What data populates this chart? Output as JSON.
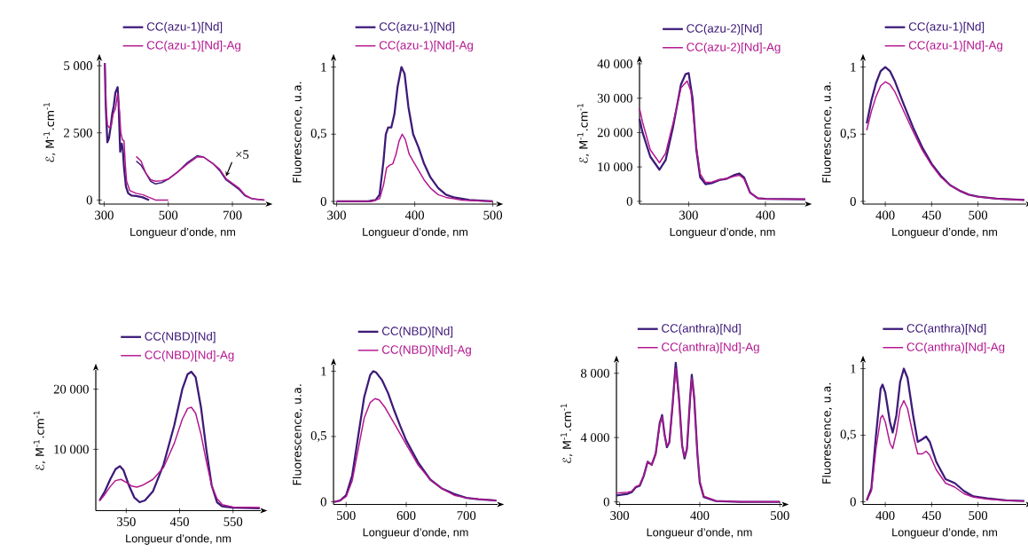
{
  "chart_data": [
    {
      "type": "line",
      "xlabel": "Longueur d’onde, nm",
      "ylabel": "ℰ, M$^{-1}$.cm$^{-1}$",
      "legend": "top",
      "xlim": [
        285,
        805
      ],
      "ylim": [
        -150,
        5200
      ],
      "xticks": [
        300,
        500,
        700
      ],
      "yticks": [
        0,
        {
          "value": 2500,
          "label": "2 500"
        },
        {
          "value": 5000,
          "label": "5 000"
        }
      ],
      "annotations": [
        {
          "text": "×5",
          "x": 680,
          "y": 880
        }
      ],
      "series": [
        {
          "name": "CC(azu-1)[Nd]",
          "color": "#3d1a78",
          "x": [
            302,
            305,
            310,
            315,
            320,
            325,
            330,
            335,
            342,
            345,
            350,
            355,
            358,
            362,
            368,
            375,
            385,
            400,
            420,
            440
          ],
          "values": [
            5100,
            3500,
            2150,
            2300,
            2700,
            3200,
            3500,
            4000,
            4200,
            3600,
            1800,
            2100,
            1900,
            1200,
            500,
            250,
            170,
            150,
            100,
            0
          ]
        },
        {
          "name": "CC(azu-1)[Nd]-Ag",
          "color": "#b3168f",
          "x": [
            302,
            306,
            310,
            315,
            322,
            328,
            335,
            342,
            348,
            352,
            357,
            362,
            366,
            370,
            380,
            400,
            420,
            440,
            460,
            500
          ],
          "values": [
            5100,
            3500,
            2800,
            2700,
            2750,
            3200,
            3400,
            3950,
            3300,
            2500,
            2250,
            2200,
            1300,
            700,
            350,
            250,
            200,
            100,
            0,
            0
          ]
        },
        {
          "color": "#3d1a78",
          "x": [
            400,
            415,
            430,
            445,
            460,
            480,
            500,
            530,
            560,
            590,
            610,
            640,
            660,
            680,
            700,
            720,
            740,
            760,
            780,
            800
          ],
          "values": [
            1450,
            1300,
            1000,
            700,
            600,
            650,
            780,
            1050,
            1400,
            1650,
            1600,
            1350,
            1100,
            750,
            580,
            400,
            150,
            50,
            20,
            0
          ]
        },
        {
          "color": "#b3168f",
          "x": [
            400,
            415,
            430,
            445,
            460,
            480,
            500,
            530,
            560,
            590,
            610,
            640,
            660,
            680,
            700,
            720,
            740,
            760,
            780,
            800
          ],
          "values": [
            1620,
            1450,
            1000,
            760,
            700,
            720,
            780,
            1050,
            1350,
            1600,
            1600,
            1350,
            1150,
            800,
            620,
            450,
            180,
            60,
            20,
            0
          ]
        }
      ]
    },
    {
      "type": "line",
      "xlabel": "Longueur d’onde, nm",
      "ylabel": "Fluorescence, u.a.",
      "legend": "top",
      "xlim": [
        296,
        505
      ],
      "ylim": [
        -0.02,
        1.05
      ],
      "xticks": [
        300,
        400,
        500
      ],
      "yticks": [
        0,
        {
          "value": 0.5,
          "label": "0,5"
        },
        1
      ],
      "series": [
        {
          "name": "CC(azu-1)[Nd]",
          "color": "#3d1a78",
          "x": [
            300,
            340,
            350,
            355,
            360,
            363,
            366,
            370,
            374,
            378,
            383,
            387,
            392,
            398,
            405,
            412,
            420,
            430,
            440,
            450,
            470,
            500
          ],
          "values": [
            0,
            0,
            0.01,
            0.05,
            0.3,
            0.5,
            0.55,
            0.55,
            0.65,
            0.85,
            1.0,
            0.95,
            0.7,
            0.5,
            0.4,
            0.28,
            0.18,
            0.1,
            0.05,
            0.03,
            0.01,
            0
          ]
        },
        {
          "name": "CC(azu-1)[Nd]-Ag",
          "color": "#b3168f",
          "x": [
            300,
            345,
            355,
            360,
            364,
            368,
            372,
            376,
            380,
            384,
            388,
            393,
            400,
            405,
            412,
            420,
            430,
            440,
            460,
            500
          ],
          "values": [
            0,
            0,
            0.02,
            0.12,
            0.25,
            0.27,
            0.28,
            0.35,
            0.45,
            0.5,
            0.46,
            0.35,
            0.28,
            0.23,
            0.16,
            0.1,
            0.05,
            0.03,
            0.01,
            0
          ]
        }
      ]
    },
    {
      "type": "line",
      "xlabel": "Longueur d’onde, nm",
      "ylabel": "ℰ, M$^{-1}$.cm$^{-1}$",
      "legend": "top",
      "xlim": [
        236,
        452
      ],
      "ylim": [
        -800,
        40500
      ],
      "xticks": [
        300,
        400
      ],
      "yticks": [
        0,
        {
          "value": 10000,
          "label": "10 000"
        },
        {
          "value": 20000,
          "label": "20 000"
        },
        {
          "value": 30000,
          "label": "30 000"
        },
        {
          "value": 40000,
          "label": "40 000"
        }
      ],
      "series": [
        {
          "name": "CC(azu-2)[Nd]",
          "color": "#3d1a78",
          "x": [
            236,
            240,
            250,
            262,
            270,
            280,
            290,
            296,
            300,
            305,
            310,
            315,
            322,
            330,
            340,
            350,
            360,
            366,
            372,
            380,
            390,
            400,
            452
          ],
          "values": [
            24000,
            20000,
            13000,
            9200,
            12000,
            22000,
            34000,
            37000,
            37300,
            30000,
            15000,
            7000,
            5000,
            5300,
            6200,
            6600,
            7700,
            8100,
            7000,
            2500,
            900,
            700,
            600
          ]
        },
        {
          "name": "CC(azu-2)[Nd]-Ag",
          "color": "#b3168f",
          "x": [
            236,
            240,
            250,
            262,
            270,
            280,
            290,
            298,
            303,
            310,
            315,
            322,
            330,
            340,
            350,
            360,
            366,
            372,
            380,
            390,
            400,
            452
          ],
          "values": [
            27000,
            23000,
            15000,
            11200,
            14000,
            23000,
            33000,
            35000,
            32000,
            16000,
            8000,
            5500,
            5600,
            6300,
            6700,
            7300,
            7600,
            6600,
            2500,
            900,
            700,
            600
          ]
        }
      ]
    },
    {
      "type": "line",
      "xlabel": "Longueur d’onde, nm",
      "ylabel": "Fluorescence, u.a.",
      "legend": "top",
      "xlim": [
        376,
        552
      ],
      "ylim": [
        -0.02,
        1.05
      ],
      "xticks": [
        400,
        450,
        500
      ],
      "yticks": [
        0,
        {
          "value": 0.5,
          "label": "0,5"
        },
        1
      ],
      "series": [
        {
          "name": "CC(azu-1)[Nd]",
          "color": "#3d1a78",
          "x": [
            380,
            385,
            390,
            395,
            400,
            405,
            410,
            420,
            430,
            440,
            450,
            460,
            470,
            480,
            490,
            500,
            520,
            550
          ],
          "values": [
            0.58,
            0.75,
            0.88,
            0.97,
            1.0,
            0.97,
            0.9,
            0.72,
            0.55,
            0.4,
            0.28,
            0.19,
            0.12,
            0.08,
            0.05,
            0.035,
            0.02,
            0.01
          ]
        },
        {
          "name": "CC(azu-1)[Nd]-Ag",
          "color": "#b3168f",
          "x": [
            380,
            385,
            390,
            395,
            400,
            405,
            410,
            420,
            430,
            440,
            450,
            460,
            470,
            480,
            490,
            500,
            520,
            550
          ],
          "values": [
            0.53,
            0.67,
            0.78,
            0.86,
            0.89,
            0.87,
            0.82,
            0.67,
            0.52,
            0.38,
            0.27,
            0.18,
            0.12,
            0.08,
            0.05,
            0.035,
            0.02,
            0.01
          ]
        }
      ]
    },
    {
      "type": "line",
      "xlabel": "Longueur d’onde, nm",
      "ylabel": "ℰ, M$^{-1}$.cm$^{-1}$",
      "legend": "top",
      "xlim": [
        293,
        602
      ],
      "ylim": [
        -200,
        23200
      ],
      "xticks": [
        350,
        450,
        550
      ],
      "yticks": [
        {
          "value": 10000,
          "label": "10 000"
        },
        {
          "value": 20000,
          "label": "20 000"
        }
      ],
      "series": [
        {
          "name": "CC(NBD)[Nd]",
          "color": "#3d1a78",
          "x": [
            300,
            310,
            320,
            330,
            338,
            345,
            355,
            365,
            375,
            385,
            400,
            420,
            440,
            455,
            465,
            472,
            480,
            490,
            500,
            510,
            520,
            530,
            550,
            600
          ],
          "values": [
            1500,
            3000,
            5000,
            6700,
            7200,
            6500,
            4000,
            2000,
            1200,
            1500,
            3000,
            7500,
            14000,
            20000,
            22500,
            22900,
            22000,
            17000,
            10000,
            4000,
            1200,
            500,
            300,
            200
          ]
        },
        {
          "name": "CC(NBD)[Nd]-Ag",
          "color": "#b3168f",
          "x": [
            300,
            310,
            320,
            330,
            340,
            350,
            360,
            370,
            380,
            400,
            420,
            440,
            455,
            465,
            472,
            480,
            490,
            500,
            510,
            520,
            530,
            550,
            600
          ],
          "values": [
            1400,
            2500,
            3800,
            4800,
            5000,
            4500,
            3900,
            3700,
            4000,
            5000,
            7000,
            11000,
            15000,
            16800,
            17000,
            16000,
            12500,
            8000,
            4000,
            1800,
            800,
            400,
            300
          ]
        }
      ]
    },
    {
      "type": "line",
      "xlabel": "Longueur d’onde, nm",
      "ylabel": "Fluorescence, u.a.",
      "legend": "top",
      "xlim": [
        479,
        752
      ],
      "ylim": [
        -0.02,
        1.05
      ],
      "xticks": [
        500,
        600,
        700
      ],
      "yticks": [
        0,
        {
          "value": 0.5,
          "label": "0,5"
        },
        1
      ],
      "series": [
        {
          "name": "CC(NBD)[Nd]",
          "color": "#3d1a78",
          "x": [
            480,
            490,
            500,
            510,
            520,
            530,
            540,
            545,
            550,
            560,
            570,
            580,
            590,
            600,
            620,
            640,
            660,
            680,
            700,
            720,
            750
          ],
          "values": [
            0,
            0.01,
            0.05,
            0.2,
            0.5,
            0.8,
            0.97,
            1.0,
            0.99,
            0.93,
            0.83,
            0.7,
            0.58,
            0.47,
            0.3,
            0.17,
            0.1,
            0.06,
            0.03,
            0.02,
            0.01
          ]
        },
        {
          "name": "CC(NBD)[Nd]-Ag",
          "color": "#b3168f",
          "x": [
            480,
            490,
            500,
            510,
            520,
            530,
            540,
            548,
            555,
            565,
            580,
            600,
            620,
            640,
            660,
            680,
            700,
            720,
            750
          ],
          "values": [
            0,
            0.01,
            0.04,
            0.16,
            0.4,
            0.64,
            0.76,
            0.79,
            0.78,
            0.72,
            0.6,
            0.44,
            0.28,
            0.17,
            0.1,
            0.05,
            0.03,
            0.02,
            0.01
          ]
        }
      ]
    },
    {
      "type": "line",
      "xlabel": "Longueur d’onde, nm",
      "ylabel": "ℰ, M$^{-1}$.cm$^{-1}$",
      "legend": "top",
      "xlim": [
        296,
        503
      ],
      "ylim": [
        -160,
        8700
      ],
      "xticks": [
        300,
        400,
        500
      ],
      "yticks": [
        0,
        {
          "value": 4000,
          "label": "4 000"
        },
        {
          "value": 8000,
          "label": "8 000"
        }
      ],
      "series": [
        {
          "name": "CC(anthra)[Nd]",
          "color": "#3d1a78",
          "x": [
            296,
            310,
            315,
            320,
            325,
            330,
            335,
            340,
            345,
            350,
            353,
            356,
            359,
            362,
            366,
            370,
            374,
            378,
            381,
            384,
            388,
            390,
            393,
            397,
            400,
            405,
            420,
            450,
            500
          ],
          "values": [
            400,
            500,
            600,
            900,
            1000,
            1600,
            2500,
            2300,
            3000,
            4900,
            5400,
            4200,
            3400,
            3700,
            6000,
            8650,
            6500,
            3500,
            2700,
            3300,
            6500,
            7900,
            6500,
            3000,
            1200,
            300,
            50,
            0,
            0
          ]
        },
        {
          "name": "CC(anthra)[Nd]-Ag",
          "color": "#b3168f",
          "x": [
            296,
            310,
            315,
            320,
            325,
            330,
            335,
            340,
            345,
            350,
            353,
            356,
            359,
            362,
            366,
            370,
            374,
            378,
            381,
            384,
            388,
            390,
            393,
            397,
            400,
            405,
            420,
            450,
            500
          ],
          "values": [
            550,
            600,
            650,
            950,
            1050,
            1650,
            2500,
            2300,
            3000,
            4800,
            5300,
            4200,
            3500,
            3700,
            5900,
            8300,
            6400,
            3500,
            2800,
            3300,
            6400,
            7700,
            6400,
            3000,
            1300,
            350,
            60,
            0,
            0
          ]
        }
      ]
    },
    {
      "type": "line",
      "xlabel": "Longueur d’onde, nm",
      "ylabel": "Fluorescence, u.a.",
      "legend": "top",
      "xlim": [
        376,
        552
      ],
      "ylim": [
        -0.02,
        1.05
      ],
      "xticks": [
        400,
        450,
        500
      ],
      "yticks": [
        0,
        {
          "value": 0.5,
          "label": "0,5"
        },
        1
      ],
      "series": [
        {
          "name": "CC(anthra)[Nd]",
          "color": "#3d1a78",
          "x": [
            380,
            385,
            390,
            395,
            397,
            400,
            405,
            408,
            412,
            416,
            420,
            424,
            430,
            435,
            440,
            444,
            448,
            455,
            465,
            475,
            485,
            495,
            510,
            530,
            550
          ],
          "values": [
            0.01,
            0.1,
            0.5,
            0.85,
            0.88,
            0.82,
            0.6,
            0.52,
            0.65,
            0.9,
            1.0,
            0.93,
            0.65,
            0.45,
            0.47,
            0.49,
            0.45,
            0.3,
            0.17,
            0.14,
            0.08,
            0.04,
            0.025,
            0.01,
            0.005
          ]
        },
        {
          "name": "CC(anthra)[Nd]-Ag",
          "color": "#b3168f",
          "x": [
            380,
            385,
            390,
            395,
            397,
            400,
            405,
            408,
            412,
            416,
            420,
            424,
            430,
            435,
            440,
            444,
            448,
            455,
            465,
            475,
            485,
            495,
            510,
            530,
            550
          ],
          "values": [
            0.01,
            0.08,
            0.4,
            0.63,
            0.65,
            0.6,
            0.44,
            0.4,
            0.52,
            0.7,
            0.76,
            0.7,
            0.5,
            0.36,
            0.36,
            0.38,
            0.35,
            0.24,
            0.14,
            0.11,
            0.06,
            0.035,
            0.02,
            0.01,
            0.005
          ]
        }
      ]
    }
  ]
}
